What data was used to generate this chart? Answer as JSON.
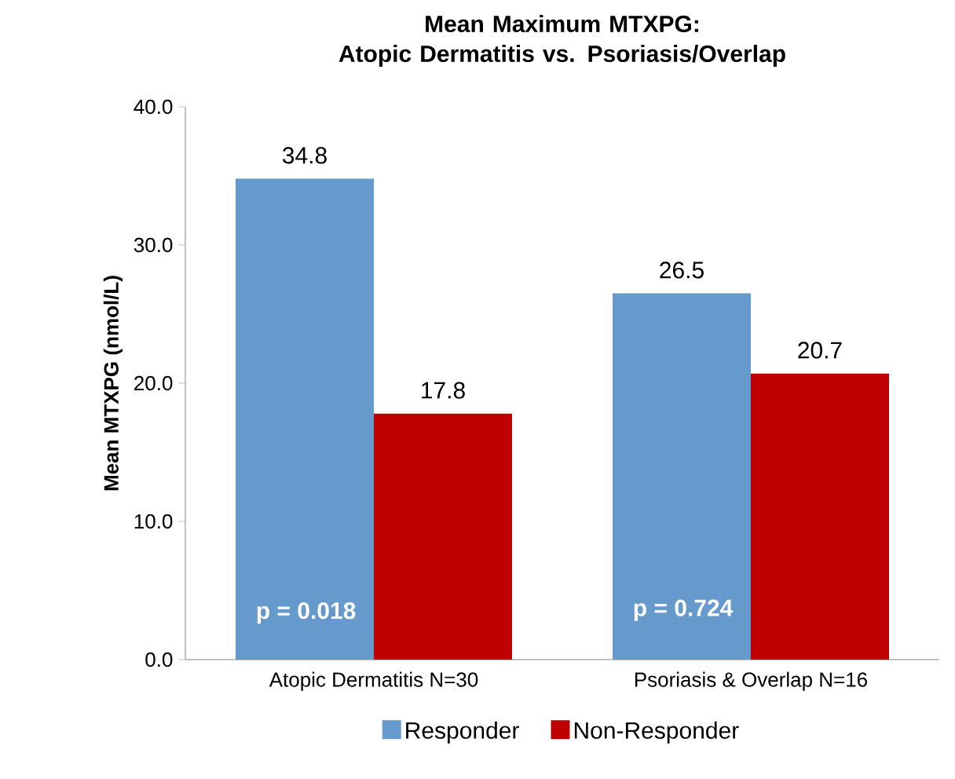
{
  "chart_data": {
    "type": "bar",
    "title": "Mean Maximum MTXPG:\nAtopic Dermatitis vs. Psoriasis/Overlap",
    "ylabel": "Mean MTXPG (nmol/L)",
    "categories": [
      "Atopic Dermatitis N=30",
      "Psoriasis & Overlap N=16"
    ],
    "series": [
      {
        "name": "Responder",
        "color": "#6699cc",
        "values": [
          34.8,
          26.5
        ]
      },
      {
        "name": "Non-Responder",
        "color": "#c00000",
        "values": [
          17.8,
          20.7
        ]
      }
    ],
    "ylim": [
      0,
      40
    ],
    "yticks": [
      {
        "value": 0,
        "label": "0.0"
      },
      {
        "value": 10,
        "label": "10.0"
      },
      {
        "value": 20,
        "label": "20.0"
      },
      {
        "value": 30,
        "label": "30.0"
      },
      {
        "value": 40,
        "label": "40.0"
      }
    ],
    "data_labels": true,
    "legend": "bottom",
    "annotations": [
      {
        "text": "p = 0.018",
        "x": "Atopic Dermatitis N=30",
        "y": 2.2
      },
      {
        "text": "p = 0.724",
        "x": "Psoriasis & Overlap N=16",
        "y": 2.4
      }
    ]
  }
}
